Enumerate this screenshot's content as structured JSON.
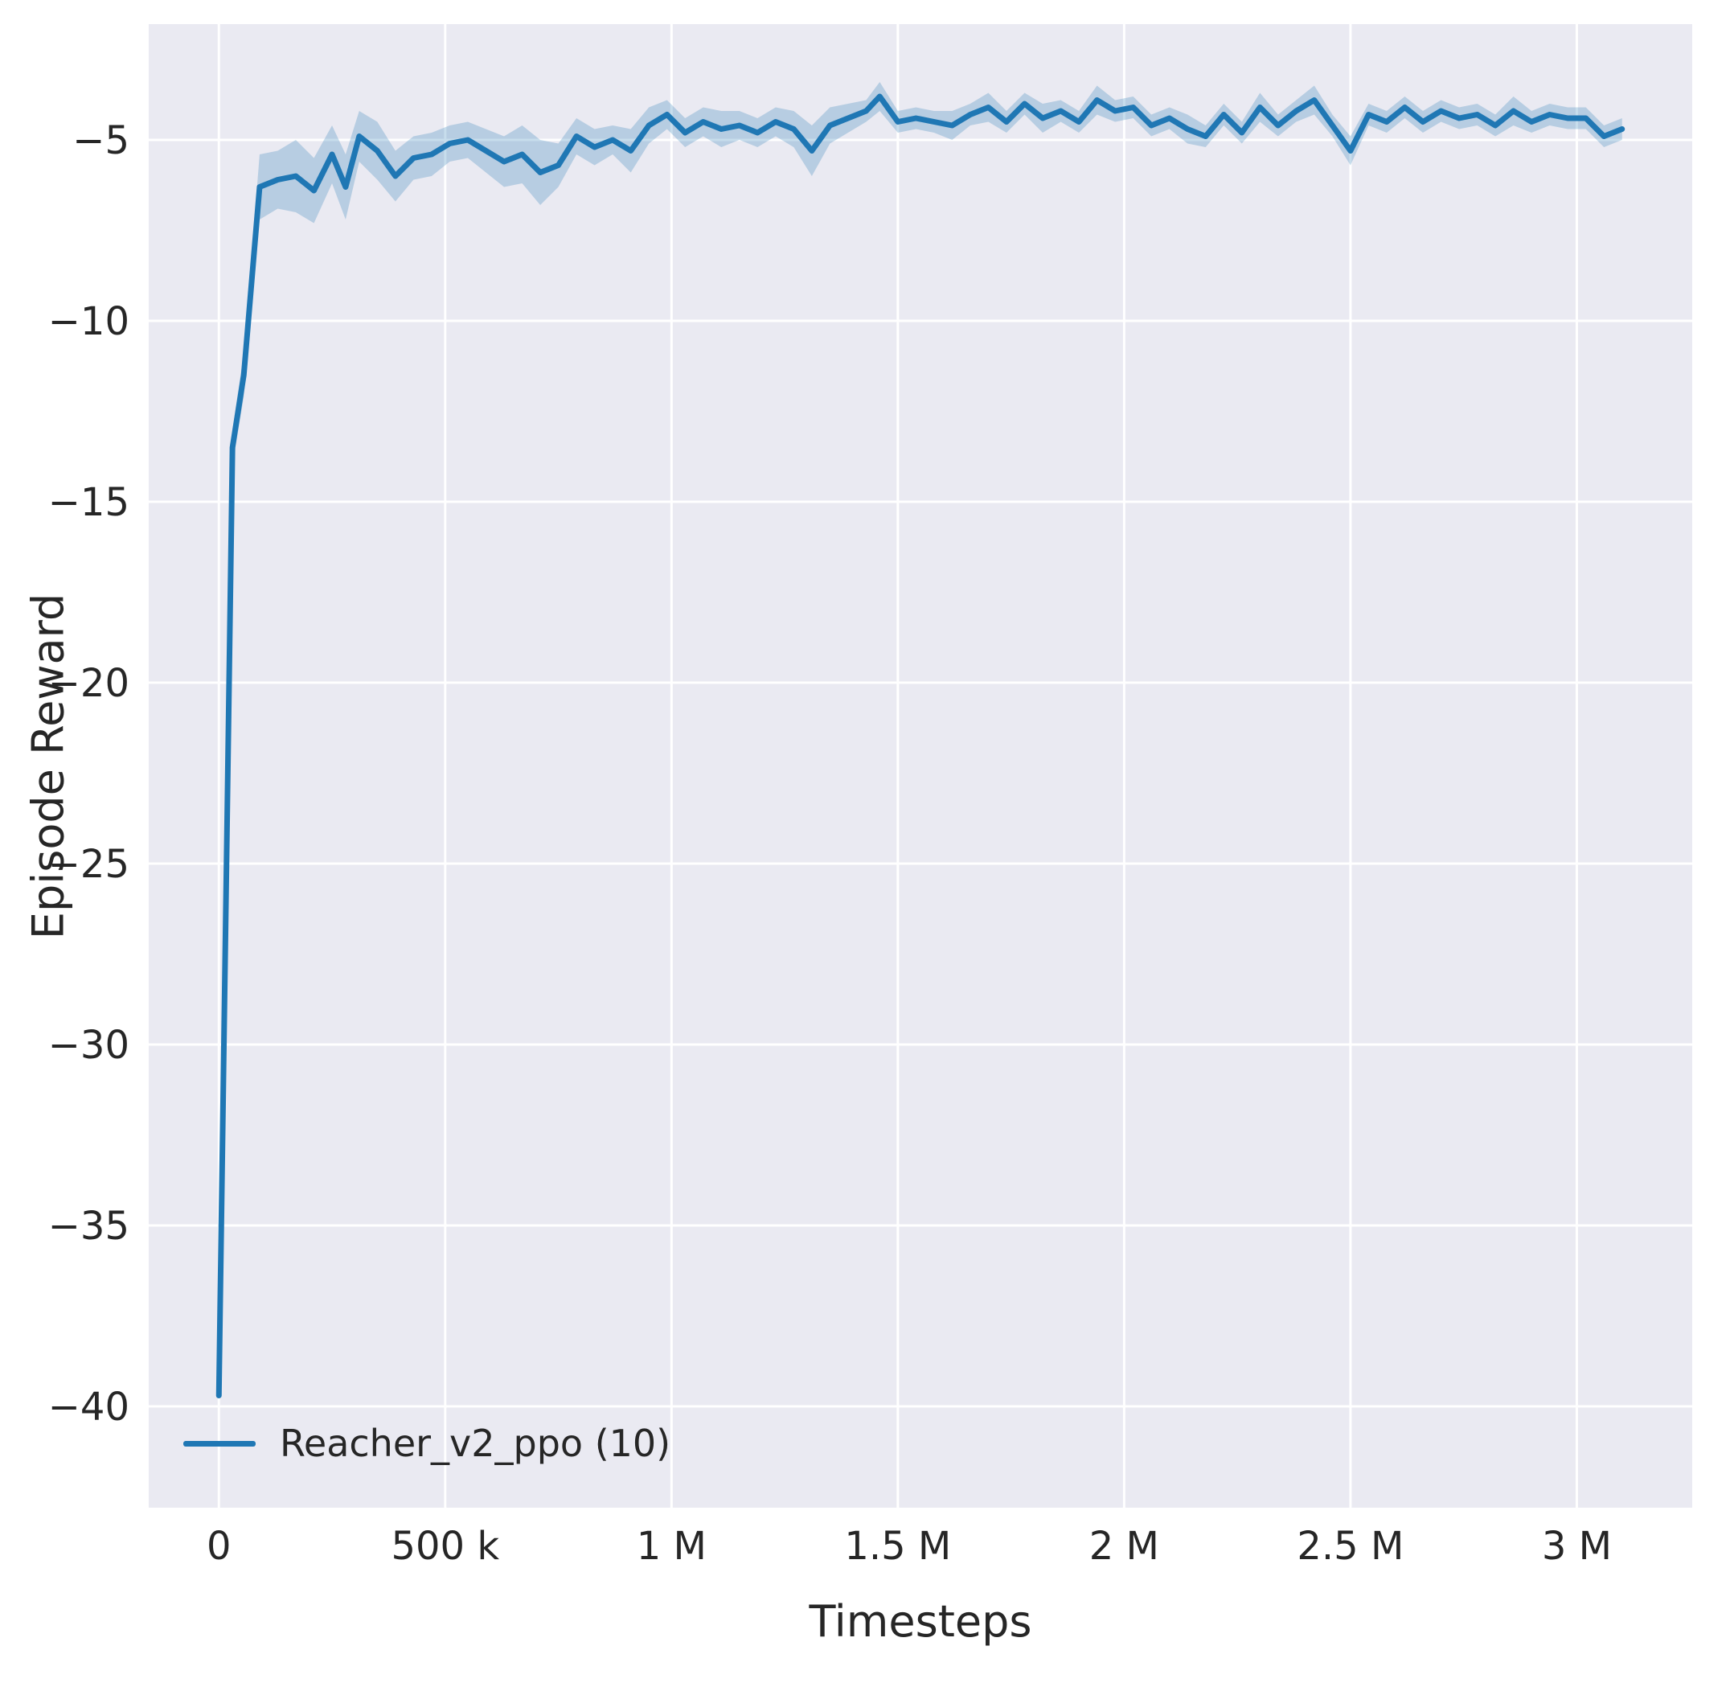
{
  "colors": {
    "figure_bg": "#ffffff",
    "plot_bg": "#eaeaf2",
    "grid": "#ffffff",
    "text": "#262626",
    "line": "#1f77b4",
    "band": "#1f77b4",
    "band_opacity": 0.25
  },
  "chart_data": {
    "type": "line",
    "title": "",
    "xlabel": "Timesteps",
    "ylabel": "Episode Reward",
    "grid": true,
    "xlim": [
      -155000,
      3255000
    ],
    "ylim": [
      -42.8,
      -1.8
    ],
    "x_ticks": [
      {
        "value": 0,
        "label": "0"
      },
      {
        "value": 500000,
        "label": "500 k"
      },
      {
        "value": 1000000,
        "label": "1 M"
      },
      {
        "value": 1500000,
        "label": "1.5 M"
      },
      {
        "value": 2000000,
        "label": "2 M"
      },
      {
        "value": 2500000,
        "label": "2.5 M"
      },
      {
        "value": 3000000,
        "label": "3 M"
      }
    ],
    "y_ticks": [
      {
        "value": -5,
        "label": "−5"
      },
      {
        "value": -10,
        "label": "−10"
      },
      {
        "value": -15,
        "label": "−15"
      },
      {
        "value": -20,
        "label": "−20"
      },
      {
        "value": -25,
        "label": "−25"
      },
      {
        "value": -30,
        "label": "−30"
      },
      {
        "value": -35,
        "label": "−35"
      },
      {
        "value": -40,
        "label": "−40"
      }
    ],
    "legend": {
      "position": "lower left",
      "entries": [
        "Reacher_v2_ppo (10)"
      ]
    },
    "series": [
      {
        "name": "Reacher_v2_ppo (10)",
        "x": [
          0,
          30000,
          55000,
          90000,
          130000,
          170000,
          210000,
          250000,
          280000,
          310000,
          350000,
          390000,
          430000,
          470000,
          510000,
          550000,
          590000,
          630000,
          670000,
          710000,
          750000,
          790000,
          830000,
          870000,
          910000,
          950000,
          990000,
          1030000,
          1070000,
          1110000,
          1150000,
          1190000,
          1230000,
          1270000,
          1310000,
          1350000,
          1390000,
          1430000,
          1460000,
          1500000,
          1540000,
          1580000,
          1620000,
          1660000,
          1700000,
          1740000,
          1780000,
          1820000,
          1860000,
          1900000,
          1940000,
          1980000,
          2020000,
          2060000,
          2100000,
          2140000,
          2180000,
          2220000,
          2260000,
          2300000,
          2340000,
          2380000,
          2420000,
          2460000,
          2500000,
          2540000,
          2580000,
          2620000,
          2660000,
          2700000,
          2740000,
          2780000,
          2820000,
          2860000,
          2900000,
          2940000,
          2980000,
          3020000,
          3060000,
          3100000
        ],
        "y": [
          -39.7,
          -13.5,
          -11.5,
          -6.3,
          -6.1,
          -6.0,
          -6.4,
          -5.4,
          -6.3,
          -4.9,
          -5.3,
          -6.0,
          -5.5,
          -5.4,
          -5.1,
          -5.0,
          -5.3,
          -5.6,
          -5.4,
          -5.9,
          -5.7,
          -4.9,
          -5.2,
          -5.0,
          -5.3,
          -4.6,
          -4.3,
          -4.8,
          -4.5,
          -4.7,
          -4.6,
          -4.8,
          -4.5,
          -4.7,
          -5.3,
          -4.6,
          -4.4,
          -4.2,
          -3.8,
          -4.5,
          -4.4,
          -4.5,
          -4.6,
          -4.3,
          -4.1,
          -4.5,
          -4.0,
          -4.4,
          -4.2,
          -4.5,
          -3.9,
          -4.2,
          -4.1,
          -4.6,
          -4.4,
          -4.7,
          -4.9,
          -4.3,
          -4.8,
          -4.1,
          -4.6,
          -4.2,
          -3.9,
          -4.6,
          -5.3,
          -4.3,
          -4.5,
          -4.1,
          -4.5,
          -4.2,
          -4.4,
          -4.3,
          -4.6,
          -4.2,
          -4.5,
          -4.3,
          -4.4,
          -4.4,
          -4.9,
          -4.7
        ],
        "band_halfwidth": [
          0.3,
          0.5,
          0.6,
          0.9,
          0.8,
          1.0,
          0.9,
          0.8,
          0.9,
          0.7,
          0.8,
          0.7,
          0.6,
          0.6,
          0.5,
          0.5,
          0.6,
          0.7,
          0.8,
          0.9,
          0.6,
          0.5,
          0.5,
          0.4,
          0.6,
          0.5,
          0.4,
          0.4,
          0.4,
          0.5,
          0.4,
          0.4,
          0.4,
          0.5,
          0.7,
          0.5,
          0.4,
          0.3,
          0.4,
          0.3,
          0.3,
          0.3,
          0.4,
          0.3,
          0.4,
          0.3,
          0.3,
          0.4,
          0.3,
          0.3,
          0.4,
          0.3,
          0.3,
          0.3,
          0.3,
          0.4,
          0.3,
          0.3,
          0.3,
          0.4,
          0.3,
          0.3,
          0.4,
          0.3,
          0.4,
          0.3,
          0.3,
          0.3,
          0.3,
          0.3,
          0.3,
          0.3,
          0.3,
          0.4,
          0.3,
          0.3,
          0.3,
          0.3,
          0.3,
          0.3
        ]
      }
    ]
  }
}
